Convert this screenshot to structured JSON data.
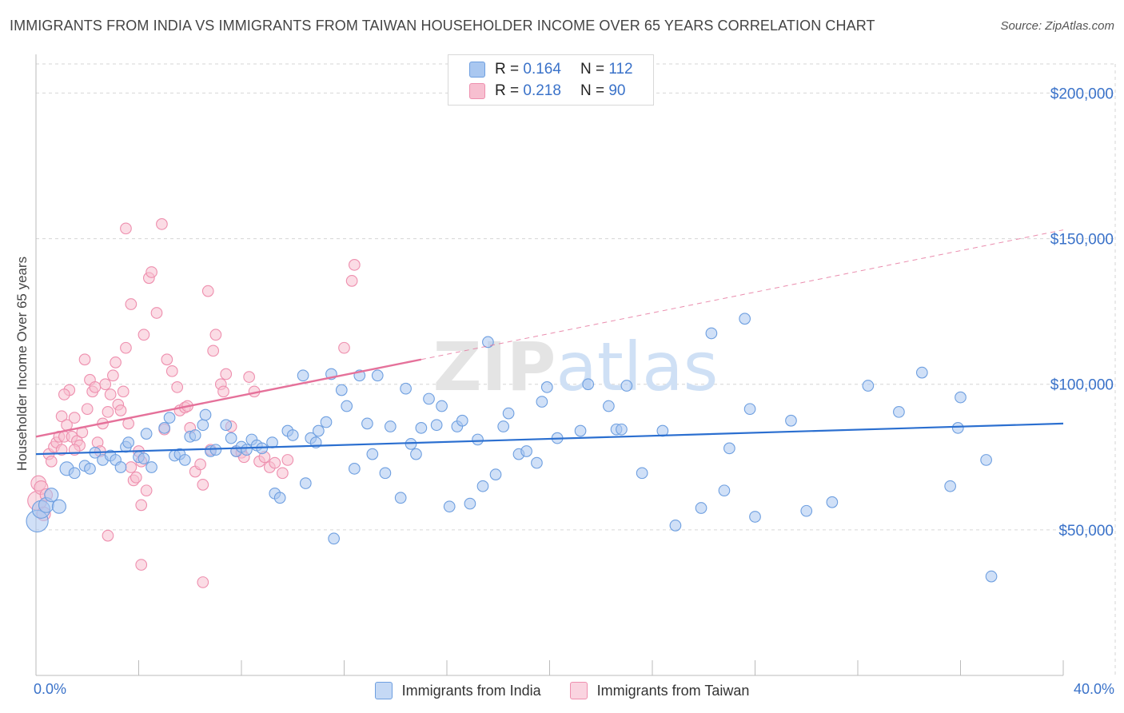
{
  "header": {
    "title": "IMMIGRANTS FROM INDIA VS IMMIGRANTS FROM TAIWAN HOUSEHOLDER INCOME OVER 65 YEARS CORRELATION CHART",
    "source": "Source: ZipAtlas.com"
  },
  "watermark": "ZIPatlas",
  "legend": {
    "india": {
      "r_label": "R =",
      "r_value": "0.164",
      "n_label": "N =",
      "n_value": "112"
    },
    "taiwan": {
      "r_label": "R =",
      "r_value": "0.218",
      "n_label": "N =",
      "n_value": "90"
    }
  },
  "bottom_legend": {
    "india": "Immigrants from India",
    "taiwan": "Immigrants from Taiwan"
  },
  "colors": {
    "india_fill": "#a9c7f0",
    "india_stroke": "#6e9fe0",
    "india_line": "#2b6fd0",
    "taiwan_fill": "#f7bfd0",
    "taiwan_stroke": "#ee8fae",
    "taiwan_line": "#e5719a",
    "grid": "#d6d6d6",
    "axis_label": "#3a72c9"
  },
  "chart_data": {
    "type": "scatter",
    "title": "IMMIGRANTS FROM INDIA VS IMMIGRANTS FROM TAIWAN HOUSEHOLDER INCOME OVER 65 YEARS CORRELATION CHART",
    "xlabel": "",
    "ylabel": "Householder Income Over 65 years",
    "xlim": [
      0,
      40
    ],
    "ylim": [
      0,
      210000
    ],
    "x_tick_labels": [
      "0.0%",
      "40.0%"
    ],
    "y_ticks": [
      50000,
      100000,
      150000,
      200000
    ],
    "y_tick_labels": [
      "$50,000",
      "$100,000",
      "$150,000",
      "$200,000"
    ],
    "grid": true,
    "legend_position": "top-center",
    "series": [
      {
        "name": "Immigrants from India",
        "trend": {
          "x": [
            0,
            40
          ],
          "y": [
            76000,
            86500
          ],
          "dashed_extension": false
        },
        "points": [
          [
            0.05,
            53000,
            1.6
          ],
          [
            0.2,
            57000,
            1.3
          ],
          [
            0.4,
            58500,
            1.1
          ],
          [
            0.6,
            62000,
            1.0
          ],
          [
            0.9,
            58000,
            1.0
          ],
          [
            1.2,
            71000,
            1.0
          ],
          [
            1.5,
            69500,
            0.8
          ],
          [
            1.9,
            72000,
            0.8
          ],
          [
            2.1,
            71000,
            0.8
          ],
          [
            2.3,
            76500,
            0.8
          ],
          [
            2.6,
            74000,
            0.8
          ],
          [
            2.9,
            75500,
            0.8
          ],
          [
            3.1,
            74000,
            0.8
          ],
          [
            3.3,
            71500,
            0.8
          ],
          [
            3.5,
            78500,
            0.8
          ],
          [
            3.6,
            80000,
            0.8
          ],
          [
            4.0,
            75000,
            0.8
          ],
          [
            4.2,
            74500,
            0.8
          ],
          [
            4.3,
            83000,
            0.8
          ],
          [
            4.5,
            71500,
            0.8
          ],
          [
            5.0,
            85000,
            0.8
          ],
          [
            5.2,
            88500,
            0.8
          ],
          [
            5.4,
            75500,
            0.8
          ],
          [
            5.6,
            76000,
            0.8
          ],
          [
            5.8,
            74000,
            0.8
          ],
          [
            6.0,
            82000,
            0.8
          ],
          [
            6.2,
            82500,
            0.8
          ],
          [
            6.5,
            86000,
            0.8
          ],
          [
            6.6,
            89500,
            0.8
          ],
          [
            6.8,
            77000,
            0.8
          ],
          [
            7.0,
            77500,
            0.8
          ],
          [
            7.4,
            86000,
            0.8
          ],
          [
            7.6,
            81500,
            0.8
          ],
          [
            7.8,
            77000,
            0.8
          ],
          [
            8.0,
            78500,
            0.8
          ],
          [
            8.2,
            77500,
            0.8
          ],
          [
            8.4,
            81000,
            0.8
          ],
          [
            8.6,
            79000,
            0.8
          ],
          [
            8.8,
            78000,
            0.8
          ],
          [
            9.2,
            80000,
            0.8
          ],
          [
            9.3,
            62500,
            0.8
          ],
          [
            9.5,
            61000,
            0.8
          ],
          [
            9.8,
            84000,
            0.8
          ],
          [
            10.0,
            82500,
            0.8
          ],
          [
            10.4,
            103000,
            0.8
          ],
          [
            10.5,
            66000,
            0.8
          ],
          [
            10.7,
            81500,
            0.8
          ],
          [
            10.9,
            80000,
            0.8
          ],
          [
            11.0,
            84000,
            0.8
          ],
          [
            11.3,
            87000,
            0.8
          ],
          [
            11.5,
            103500,
            0.8
          ],
          [
            11.6,
            47000,
            0.8
          ],
          [
            11.9,
            98000,
            0.8
          ],
          [
            12.1,
            92500,
            0.8
          ],
          [
            12.4,
            71000,
            0.8
          ],
          [
            12.6,
            103000,
            0.8
          ],
          [
            12.9,
            86500,
            0.8
          ],
          [
            13.1,
            76000,
            0.8
          ],
          [
            13.3,
            103000,
            0.8
          ],
          [
            13.6,
            69500,
            0.8
          ],
          [
            13.8,
            85500,
            0.8
          ],
          [
            14.2,
            61000,
            0.8
          ],
          [
            14.4,
            98500,
            0.8
          ],
          [
            14.6,
            79500,
            0.8
          ],
          [
            14.8,
            76000,
            0.8
          ],
          [
            15.0,
            85000,
            0.8
          ],
          [
            15.3,
            95000,
            0.8
          ],
          [
            15.6,
            86000,
            0.8
          ],
          [
            15.8,
            92500,
            0.8
          ],
          [
            16.1,
            58000,
            0.8
          ],
          [
            16.4,
            85500,
            0.8
          ],
          [
            16.6,
            87500,
            0.8
          ],
          [
            16.9,
            59000,
            0.8
          ],
          [
            17.2,
            81000,
            0.8
          ],
          [
            17.4,
            65000,
            0.8
          ],
          [
            17.6,
            114500,
            0.8
          ],
          [
            17.9,
            69000,
            0.8
          ],
          [
            18.2,
            85500,
            0.8
          ],
          [
            18.4,
            90000,
            0.8
          ],
          [
            18.8,
            76000,
            0.8
          ],
          [
            19.1,
            77000,
            0.8
          ],
          [
            19.5,
            73000,
            0.8
          ],
          [
            19.7,
            94000,
            0.8
          ],
          [
            19.9,
            99000,
            0.8
          ],
          [
            20.3,
            81500,
            0.8
          ],
          [
            21.2,
            84000,
            0.8
          ],
          [
            21.5,
            100000,
            0.8
          ],
          [
            22.3,
            92500,
            0.8
          ],
          [
            22.6,
            84500,
            0.8
          ],
          [
            22.8,
            84500,
            0.8
          ],
          [
            23.0,
            99500,
            0.8
          ],
          [
            23.6,
            69500,
            0.8
          ],
          [
            24.4,
            84000,
            0.8
          ],
          [
            24.9,
            51500,
            0.8
          ],
          [
            25.9,
            57500,
            0.8
          ],
          [
            26.3,
            117500,
            0.8
          ],
          [
            26.8,
            63500,
            0.8
          ],
          [
            27.0,
            78000,
            0.8
          ],
          [
            27.6,
            122500,
            0.8
          ],
          [
            27.8,
            91500,
            0.8
          ],
          [
            28.0,
            54500,
            0.8
          ],
          [
            29.4,
            87500,
            0.8
          ],
          [
            30.0,
            56500,
            0.8
          ],
          [
            31.0,
            59500,
            0.8
          ],
          [
            32.4,
            99500,
            0.8
          ],
          [
            33.6,
            90500,
            0.8
          ],
          [
            34.5,
            104000,
            0.8
          ],
          [
            35.6,
            65000,
            0.8
          ],
          [
            35.9,
            85000,
            0.8
          ],
          [
            36.0,
            95500,
            0.8
          ],
          [
            37.0,
            74000,
            0.8
          ],
          [
            37.2,
            34000,
            0.8
          ]
        ]
      },
      {
        "name": "Immigrants from Taiwan",
        "trend": {
          "x": [
            0,
            15
          ],
          "y": [
            82000,
            108500
          ],
          "dashed_extension": true,
          "dashed_to": [
            40,
            153000
          ]
        },
        "points": [
          [
            0.05,
            60000,
            1.4
          ],
          [
            0.1,
            66000,
            1.1
          ],
          [
            0.2,
            64500,
            1.0
          ],
          [
            0.3,
            55500,
            1.0
          ],
          [
            0.4,
            62000,
            0.9
          ],
          [
            0.5,
            76000,
            0.8
          ],
          [
            0.6,
            73500,
            0.8
          ],
          [
            0.7,
            78500,
            0.8
          ],
          [
            0.8,
            80000,
            0.8
          ],
          [
            0.9,
            82000,
            0.8
          ],
          [
            1.0,
            77500,
            0.8
          ],
          [
            1.0,
            89000,
            0.8
          ],
          [
            1.1,
            82000,
            0.8
          ],
          [
            1.2,
            86000,
            0.8
          ],
          [
            1.3,
            98000,
            0.8
          ],
          [
            1.4,
            82000,
            0.8
          ],
          [
            1.5,
            88500,
            0.8
          ],
          [
            1.1,
            96500,
            0.8
          ],
          [
            1.6,
            80500,
            0.8
          ],
          [
            1.7,
            79000,
            0.8
          ],
          [
            1.8,
            83500,
            0.8
          ],
          [
            1.9,
            108500,
            0.8
          ],
          [
            2.0,
            91500,
            0.8
          ],
          [
            2.1,
            101500,
            0.8
          ],
          [
            2.2,
            97500,
            0.8
          ],
          [
            2.3,
            99000,
            0.8
          ],
          [
            2.4,
            80000,
            0.8
          ],
          [
            2.6,
            86500,
            0.8
          ],
          [
            2.7,
            100000,
            0.8
          ],
          [
            2.8,
            90500,
            0.8
          ],
          [
            2.9,
            96500,
            0.8
          ],
          [
            3.0,
            103000,
            0.8
          ],
          [
            3.1,
            107500,
            0.8
          ],
          [
            3.2,
            93000,
            0.8
          ],
          [
            3.3,
            91000,
            0.8
          ],
          [
            3.4,
            97500,
            0.8
          ],
          [
            3.5,
            112500,
            0.8
          ],
          [
            3.6,
            86500,
            0.8
          ],
          [
            3.7,
            71500,
            0.8
          ],
          [
            3.8,
            67000,
            0.8
          ],
          [
            3.9,
            68000,
            0.8
          ],
          [
            4.0,
            77000,
            0.8
          ],
          [
            4.1,
            73500,
            0.8
          ],
          [
            3.7,
            127500,
            0.8
          ],
          [
            4.2,
            117000,
            0.8
          ],
          [
            4.4,
            136500,
            0.8
          ],
          [
            4.5,
            138500,
            0.8
          ],
          [
            4.7,
            124500,
            0.8
          ],
          [
            3.5,
            153500,
            0.8
          ],
          [
            4.9,
            155000,
            0.8
          ],
          [
            5.1,
            108500,
            0.8
          ],
          [
            5.3,
            104500,
            0.8
          ],
          [
            5.5,
            99000,
            0.8
          ],
          [
            5.6,
            91000,
            0.8
          ],
          [
            5.8,
            92000,
            0.8
          ],
          [
            6.0,
            85000,
            0.8
          ],
          [
            6.2,
            70000,
            0.8
          ],
          [
            6.4,
            72500,
            0.8
          ],
          [
            6.5,
            65500,
            0.8
          ],
          [
            6.7,
            132000,
            0.8
          ],
          [
            6.9,
            111500,
            0.8
          ],
          [
            7.0,
            117000,
            0.8
          ],
          [
            7.2,
            100000,
            0.8
          ],
          [
            7.3,
            97500,
            0.8
          ],
          [
            7.4,
            103500,
            0.8
          ],
          [
            7.6,
            85500,
            0.8
          ],
          [
            7.8,
            77000,
            0.8
          ],
          [
            8.0,
            76500,
            0.8
          ],
          [
            8.1,
            75000,
            0.8
          ],
          [
            8.3,
            102500,
            0.8
          ],
          [
            8.5,
            97500,
            0.8
          ],
          [
            8.7,
            73500,
            0.8
          ],
          [
            8.9,
            75000,
            0.8
          ],
          [
            9.1,
            71500,
            0.8
          ],
          [
            9.3,
            73000,
            0.8
          ],
          [
            9.6,
            69500,
            0.8
          ],
          [
            9.8,
            74000,
            0.8
          ],
          [
            2.8,
            48000,
            0.8
          ],
          [
            4.1,
            38000,
            0.8
          ],
          [
            6.5,
            32000,
            0.8
          ],
          [
            4.3,
            63500,
            0.8
          ],
          [
            4.1,
            58500,
            0.8
          ],
          [
            5.0,
            84500,
            0.8
          ],
          [
            5.9,
            92500,
            0.8
          ],
          [
            6.8,
            77500,
            0.8
          ],
          [
            12.0,
            112500,
            0.8
          ],
          [
            12.3,
            135500,
            0.8
          ],
          [
            12.4,
            141000,
            0.8
          ],
          [
            2.5,
            77000,
            0.8
          ],
          [
            1.5,
            77500,
            0.8
          ]
        ]
      }
    ]
  }
}
